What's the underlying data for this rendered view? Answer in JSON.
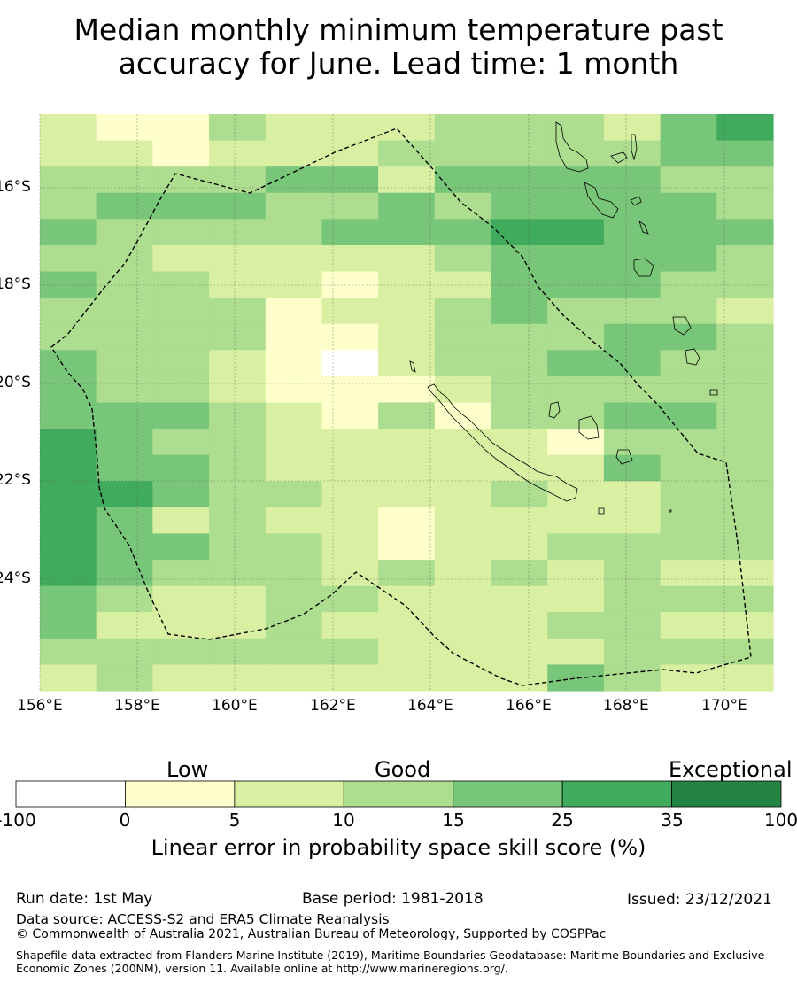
{
  "title_line1": "Median monthly minimum temperature past",
  "title_line2": "accuracy for June. Lead time: 1 month",
  "map": {
    "lon_range": [
      156,
      171
    ],
    "lat_range": [
      -26.3,
      -14.5
    ],
    "lon_ticks": [
      "156°E",
      "158°E",
      "160°E",
      "162°E",
      "164°E",
      "166°E",
      "168°E",
      "170°E"
    ],
    "lat_ticks": [
      "16°S",
      "18°S",
      "20°S",
      "22°S",
      "24°S"
    ],
    "grid": true,
    "boundary": "dashed EEZ outline",
    "grid_rows": [
      "2113222333245",
      "2212223333344",
      "3333442444433",
      "3444334344443",
      "4333344455444",
      "3322222344443",
      "4332212244433",
      "3333122343332",
      "3333112333443",
      "4332102334433",
      "4332111233333",
      "4443213133443",
      "5433222221333",
      "5443222222433",
      "5543322232233",
      "5423221222233",
      "5443321223333",
      "5433323232322",
      "4322332222333",
      "4222322223322",
      "3333332222333",
      "2322222224322"
    ]
  },
  "colorbar": {
    "categories": [
      "Low",
      "Good",
      "Exceptional"
    ],
    "bounds": [
      "-100",
      "0",
      "5",
      "10",
      "15",
      "25",
      "35",
      "100"
    ],
    "colors": [
      "#ffffff",
      "#ffffcc",
      "#d9f0a3",
      "#addd8e",
      "#78c679",
      "#41ab5d",
      "#238443"
    ],
    "label": "Linear error in probability space skill score (%)"
  },
  "footer": {
    "run_date": "Run date: 1st May",
    "base_period": "Base period: 1981-2018",
    "issued": "Issued: 23/12/2021",
    "data_source": "Data source: ACCESS-S2 and ERA5 Climate Reanalysis",
    "copyright": "© Commonwealth of Australia 2021, Australian Bureau of Meteorology, Supported by COSPPac",
    "shapefile": "Shapefile data extracted from Flanders Marine Institute (2019), Maritime Boundaries Geodatabase: Maritime Boundaries and Exclusive Economic Zones (200NM), version 11. Available online at http://www.marineregions.org/."
  }
}
